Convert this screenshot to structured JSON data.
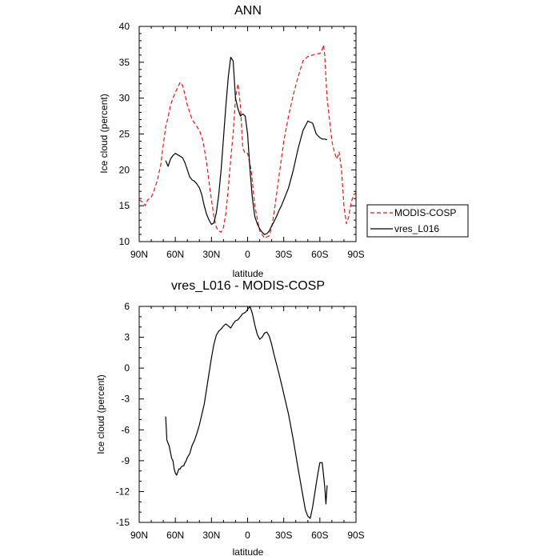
{
  "chart_data": [
    {
      "type": "line",
      "title": "ANN",
      "xlabel": "latitude",
      "ylabel": "Ice cloud (percent)",
      "xlim": [
        90,
        -90
      ],
      "ylim": [
        10,
        40
      ],
      "x_ticks": [
        {
          "value": 90,
          "label": "90N"
        },
        {
          "value": 60,
          "label": "60N"
        },
        {
          "value": 30,
          "label": "30N"
        },
        {
          "value": 0,
          "label": "0"
        },
        {
          "value": -30,
          "label": "30S"
        },
        {
          "value": -60,
          "label": "60S"
        },
        {
          "value": -90,
          "label": "90S"
        }
      ],
      "y_ticks": [
        10,
        15,
        20,
        25,
        30,
        35,
        40
      ],
      "grid": false,
      "legend_position": "right",
      "series": [
        {
          "name": "MODIS-COSP",
          "color": "#e41a1c",
          "dash": "dashed",
          "x": [
            90,
            87,
            85,
            83,
            80,
            78,
            75,
            72,
            70,
            68,
            66,
            64,
            62,
            60,
            58,
            56,
            54,
            52,
            50,
            48,
            46,
            44,
            42,
            40,
            37,
            34,
            31,
            28,
            26,
            24,
            22,
            20,
            18,
            16,
            14,
            12,
            10,
            8,
            6,
            4,
            2,
            0,
            -3,
            -6,
            -10,
            -14,
            -18,
            -20,
            -22,
            -24,
            -26,
            -28,
            -30,
            -34,
            -38,
            -42,
            -46,
            -50,
            -54,
            -57,
            -60,
            -62,
            -63,
            -64,
            -65,
            -66,
            -68,
            -70,
            -72,
            -74,
            -76,
            -78,
            -80,
            -82,
            -84,
            -86,
            -88,
            -90
          ],
          "y": [
            15.8,
            15.5,
            15.0,
            15.8,
            16.2,
            17.0,
            18.5,
            20.8,
            23.5,
            26.0,
            27.3,
            29.0,
            30.0,
            30.8,
            31.5,
            32.2,
            31.8,
            30.5,
            29.0,
            28.0,
            27.0,
            26.5,
            26.0,
            25.5,
            24.0,
            21.0,
            17.0,
            13.5,
            12.0,
            11.5,
            11.3,
            12.0,
            14.0,
            17.5,
            21.5,
            25.0,
            30.0,
            32.0,
            29.0,
            23.0,
            22.3,
            22.3,
            20.0,
            15.0,
            11.5,
            10.5,
            10.8,
            12.0,
            14.0,
            16.5,
            19.0,
            21.5,
            24.0,
            27.5,
            30.5,
            33.0,
            35.2,
            35.8,
            36.0,
            36.2,
            36.2,
            36.8,
            37.4,
            36.0,
            33.0,
            30.0,
            27.0,
            24.0,
            22.5,
            21.5,
            22.5,
            20.0,
            15.0,
            12.5,
            13.5,
            15.5,
            16.5,
            16.8
          ]
        },
        {
          "name": "vres_L016",
          "color": "#000000",
          "dash": "solid",
          "x": [
            68,
            66,
            64,
            62,
            60,
            58,
            56,
            54,
            52,
            50,
            48,
            46,
            44,
            42,
            40,
            38,
            36,
            34,
            32,
            30,
            28,
            26,
            24,
            22,
            20,
            18,
            16,
            14,
            12,
            10,
            8,
            6,
            4,
            2,
            0,
            -2,
            -4,
            -6,
            -8,
            -10,
            -12,
            -14,
            -16,
            -18,
            -20,
            -22,
            -24,
            -26,
            -28,
            -30,
            -34,
            -38,
            -42,
            -46,
            -50,
            -54,
            -57,
            -60,
            -62,
            -64,
            -66
          ],
          "y": [
            21.3,
            20.5,
            21.5,
            22.0,
            22.3,
            22.1,
            21.9,
            21.7,
            21.0,
            20.0,
            19.0,
            18.6,
            18.4,
            18.0,
            17.5,
            16.5,
            15.0,
            13.8,
            13.0,
            12.4,
            12.6,
            14.0,
            16.5,
            20.0,
            24.5,
            29.0,
            33.0,
            35.7,
            35.2,
            30.0,
            28.5,
            27.5,
            27.8,
            27.5,
            25.0,
            20.0,
            16.0,
            13.5,
            12.5,
            11.8,
            11.3,
            11.0,
            11.1,
            11.5,
            12.2,
            12.8,
            13.5,
            14.3,
            15.0,
            15.8,
            17.5,
            20.0,
            23.0,
            25.5,
            26.8,
            26.5,
            25.0,
            24.5,
            24.3,
            24.3,
            24.2
          ]
        }
      ]
    },
    {
      "type": "line",
      "title": "vres_L016 - MODIS-COSP",
      "xlabel": "latitude",
      "ylabel": "Ice cloud (percent)",
      "xlim": [
        90,
        -90
      ],
      "ylim": [
        -15,
        6
      ],
      "x_ticks": [
        {
          "value": 90,
          "label": "90N"
        },
        {
          "value": 60,
          "label": "60N"
        },
        {
          "value": 30,
          "label": "30N"
        },
        {
          "value": 0,
          "label": "0"
        },
        {
          "value": -30,
          "label": "30S"
        },
        {
          "value": -60,
          "label": "60S"
        },
        {
          "value": -90,
          "label": "90S"
        }
      ],
      "y_ticks": [
        -15,
        -12,
        -9,
        -6,
        -3,
        0,
        3,
        6
      ],
      "grid": false,
      "series": [
        {
          "name": "",
          "color": "#000000",
          "dash": "solid",
          "x": [
            68,
            67,
            66,
            65,
            64,
            63,
            62,
            61,
            60,
            59,
            58,
            57,
            56,
            55,
            54,
            53,
            52,
            51,
            50,
            48,
            46,
            44,
            42,
            40,
            38,
            36,
            34,
            32,
            30,
            28,
            26,
            24,
            22,
            20,
            18,
            16,
            14,
            12,
            10,
            8,
            6,
            4,
            2,
            0,
            -2,
            -4,
            -6,
            -8,
            -10,
            -12,
            -14,
            -16,
            -18,
            -20,
            -22,
            -24,
            -26,
            -28,
            -30,
            -34,
            -38,
            -42,
            -46,
            -48,
            -50,
            -52,
            -54,
            -56,
            -58,
            -60,
            -62,
            -64,
            -65,
            -66
          ],
          "y": [
            -4.7,
            -7.0,
            -7.3,
            -7.6,
            -8.2,
            -8.8,
            -9.0,
            -9.8,
            -10.2,
            -10.4,
            -10.1,
            -9.8,
            -9.8,
            -9.6,
            -9.5,
            -9.5,
            -9.2,
            -9.0,
            -8.7,
            -8.3,
            -7.5,
            -7.0,
            -6.3,
            -5.5,
            -4.5,
            -3.5,
            -2.0,
            -0.5,
            1.0,
            2.3,
            3.2,
            3.6,
            3.8,
            4.1,
            4.3,
            4.1,
            3.9,
            4.3,
            4.6,
            4.7,
            5.0,
            5.3,
            5.4,
            5.7,
            6.0,
            5.3,
            4.2,
            3.3,
            2.8,
            3.0,
            3.4,
            3.5,
            3.1,
            2.3,
            1.3,
            0.4,
            -0.5,
            -1.5,
            -2.5,
            -4.5,
            -7.0,
            -9.8,
            -12.5,
            -13.8,
            -14.4,
            -14.6,
            -13.5,
            -12.0,
            -10.5,
            -9.2,
            -9.2,
            -11.5,
            -13.2,
            -11.4
          ]
        }
      ]
    }
  ]
}
